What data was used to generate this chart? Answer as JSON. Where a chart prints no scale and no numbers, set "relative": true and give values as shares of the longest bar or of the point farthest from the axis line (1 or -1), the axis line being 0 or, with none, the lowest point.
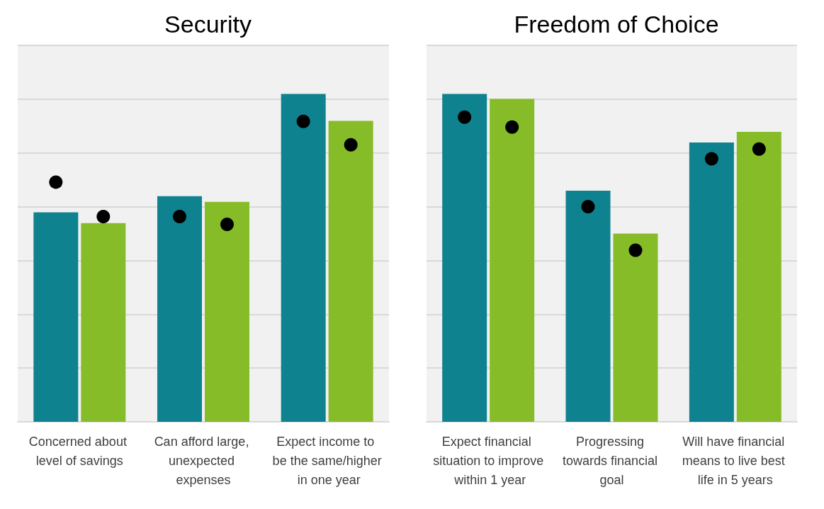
{
  "chart_data": [
    {
      "type": "bar",
      "title": "Security",
      "relative": true,
      "grid": "y",
      "categories": [
        "Concerned about level of savings",
        "Can afford large, unexpected expenses",
        "Expect income to be the same/higher in one year"
      ],
      "series": [
        {
          "color": "#0e828e",
          "values": [
            0.639,
            0.688,
            1.0
          ]
        },
        {
          "color": "#86bc27",
          "values": [
            0.606,
            0.671,
            0.918
          ]
        },
        {
          "type": "scatter",
          "color": "#000000",
          "x": [
            "Concerned about level of savings",
            "Can afford large, unexpected expenses",
            "Expect income to be the same/higher in one year"
          ],
          "values": [
            0.731,
            0.626,
            0.916
          ]
        },
        {
          "type": "scatter",
          "color": "#000000",
          "x": [
            "Concerned about level of savings",
            "Can afford large, unexpected expenses",
            "Expect income to be the same/higher in one year"
          ],
          "values": [
            0.626,
            0.602,
            0.845
          ]
        }
      ],
      "marker": "circle"
    },
    {
      "type": "bar",
      "title": "Freedom of Choice",
      "relative": true,
      "grid": "y",
      "categories": [
        "Expect financial situation to improve within 1 year",
        "Progressing towards financial goal",
        "Will have financial means to live best life in 5 years"
      ],
      "series": [
        {
          "color": "#0e828e",
          "values": [
            1.0,
            0.705,
            0.852
          ]
        },
        {
          "color": "#86bc27",
          "values": [
            0.985,
            0.574,
            0.884
          ]
        },
        {
          "type": "scatter",
          "color": "#000000",
          "x": [
            "Expect financial situation to improve within 1 year",
            "Progressing towards financial goal",
            "Will have financial means to live best life in 5 years"
          ],
          "values": [
            0.929,
            0.656,
            0.802
          ]
        },
        {
          "type": "scatter",
          "color": "#000000",
          "x": [
            "Expect financial situation to improve within 1 year",
            "Progressing towards financial goal",
            "Will have financial means to live best life in 5 years"
          ],
          "values": [
            0.899,
            0.523,
            0.832
          ]
        }
      ],
      "marker": "circle"
    }
  ]
}
